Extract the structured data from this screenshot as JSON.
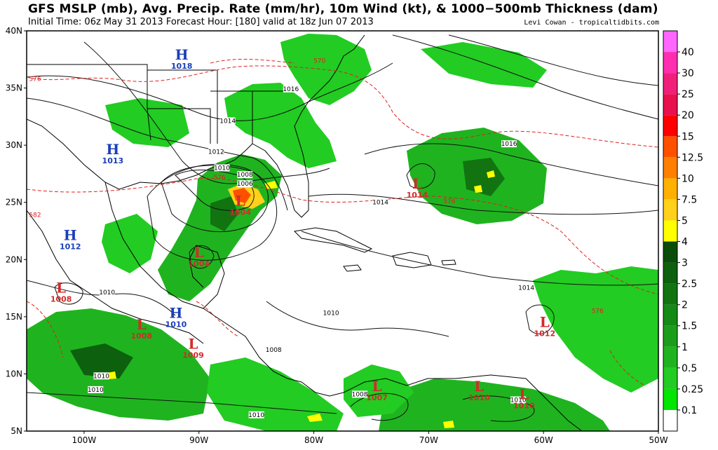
{
  "header": {
    "title": "GFS MSLP (mb), Avg. Precip. Rate (mm/hr), 10m Wind (kt), & 1000−500mb Thickness (dam)",
    "subtitle": "Initial Time: 06z May 31 2013 Forecast Hour: [180] valid at 18z Jun 07 2013",
    "credit": "Levi Cowan - tropicaltidbits.com"
  },
  "map_extent": {
    "lon_min": -105,
    "lon_max": -50,
    "lat_min": 5,
    "lat_max": 40
  },
  "axes": {
    "lat_labels": [
      {
        "lat": 40,
        "text": "40N"
      },
      {
        "lat": 35,
        "text": "35N"
      },
      {
        "lat": 30,
        "text": "30N"
      },
      {
        "lat": 25,
        "text": "25N"
      },
      {
        "lat": 20,
        "text": "20N"
      },
      {
        "lat": 15,
        "text": "15N"
      },
      {
        "lat": 10,
        "text": "10N"
      },
      {
        "lat": 5,
        "text": "5N"
      }
    ],
    "lon_labels": [
      {
        "lon": -100,
        "text": "100W"
      },
      {
        "lon": -90,
        "text": "90W"
      },
      {
        "lon": -80,
        "text": "80W"
      },
      {
        "lon": -70,
        "text": "70W"
      },
      {
        "lon": -60,
        "text": "60W"
      },
      {
        "lon": -50,
        "text": "50W"
      }
    ]
  },
  "pressure_centers": [
    {
      "type": "H",
      "lon": -91.5,
      "lat": 37.5,
      "value": "1018"
    },
    {
      "type": "H",
      "lon": -97.5,
      "lat": 29.2,
      "value": "1013"
    },
    {
      "type": "H",
      "lon": -101.2,
      "lat": 21.7,
      "value": "1012"
    },
    {
      "type": "H",
      "lon": -92.0,
      "lat": 14.9,
      "value": "1010"
    },
    {
      "type": "L",
      "lon": -71.0,
      "lat": 26.2,
      "value": "1014"
    },
    {
      "type": "L",
      "lon": -86.4,
      "lat": 24.7,
      "value": "1004"
    },
    {
      "type": "L",
      "lon": -90.0,
      "lat": 20.2,
      "value": "1004"
    },
    {
      "type": "L",
      "lon": -102.0,
      "lat": 17.1,
      "value": "1008"
    },
    {
      "type": "L",
      "lon": -95.0,
      "lat": 13.9,
      "value": "1008"
    },
    {
      "type": "L",
      "lon": -90.5,
      "lat": 12.2,
      "value": "1009"
    },
    {
      "type": "L",
      "lon": -59.9,
      "lat": 14.1,
      "value": "1012"
    },
    {
      "type": "L",
      "lon": -74.5,
      "lat": 8.5,
      "value": "1007"
    },
    {
      "type": "L",
      "lon": -65.6,
      "lat": 8.5,
      "value": "1010"
    },
    {
      "type": "L",
      "lon": -61.7,
      "lat": 7.8,
      "value": "1010"
    }
  ],
  "isobar_labels": [
    {
      "lon": -87.5,
      "lat": 32.0,
      "text": "1014"
    },
    {
      "lon": -82.0,
      "lat": 34.8,
      "text": "1016"
    },
    {
      "lon": -88.5,
      "lat": 29.3,
      "text": "1012"
    },
    {
      "lon": -88.0,
      "lat": 27.9,
      "text": "1010"
    },
    {
      "lon": -86.0,
      "lat": 27.3,
      "text": "1008"
    },
    {
      "lon": -86.0,
      "lat": 26.5,
      "text": "1006"
    },
    {
      "lon": -63.0,
      "lat": 30.0,
      "text": "1016"
    },
    {
      "lon": -74.2,
      "lat": 24.9,
      "text": "1014"
    },
    {
      "lon": -61.5,
      "lat": 17.4,
      "text": "1014"
    },
    {
      "lon": -98.0,
      "lat": 17.0,
      "text": "1010"
    },
    {
      "lon": -78.5,
      "lat": 15.2,
      "text": "1010"
    },
    {
      "lon": -83.5,
      "lat": 12.0,
      "text": "1008"
    },
    {
      "lon": -99.0,
      "lat": 8.5,
      "text": "1010"
    },
    {
      "lon": -98.5,
      "lat": 9.7,
      "text": "1010"
    },
    {
      "lon": -85.0,
      "lat": 6.3,
      "text": "1010"
    },
    {
      "lon": -76.0,
      "lat": 8.1,
      "text": "1008"
    },
    {
      "lon": -62.2,
      "lat": 7.6,
      "text": "1010"
    }
  ],
  "thickness_labels": [
    {
      "lon": -105.0,
      "lat": 35.8,
      "text": "576"
    },
    {
      "lon": -105.0,
      "lat": 23.9,
      "text": "582"
    },
    {
      "lon": -88.2,
      "lat": 27.2,
      "text": "576"
    },
    {
      "lon": -79.5,
      "lat": 37.4,
      "text": "570"
    },
    {
      "lon": -68.2,
      "lat": 25.1,
      "text": "576"
    },
    {
      "lon": -55.3,
      "lat": 15.5,
      "text": "576"
    }
  ],
  "colorbar": {
    "levels": [
      "0.1",
      "0.25",
      "0.5",
      "1",
      "1.5",
      "2",
      "2.5",
      "3",
      "4",
      "5",
      "7.5",
      "10",
      "12.5",
      "15",
      "20",
      "25",
      "30",
      "40"
    ],
    "colors": [
      "#ffffff",
      "#00e600",
      "#22cc22",
      "#1fb41f",
      "#1a9e1a",
      "#158915",
      "#117411",
      "#0d600d",
      "#0a4d0a",
      "#ffff00",
      "#ffd11a",
      "#ffb000",
      "#ff8000",
      "#ff5000",
      "#ff0000",
      "#e8104d",
      "#f0207a",
      "#ff2eb0",
      "#ff66ff"
    ]
  },
  "colors": {
    "isobar": "#111111",
    "thickness": "#e02020",
    "coast": "#000000",
    "high": "#1a3fb8",
    "low": "#d42a2a"
  }
}
